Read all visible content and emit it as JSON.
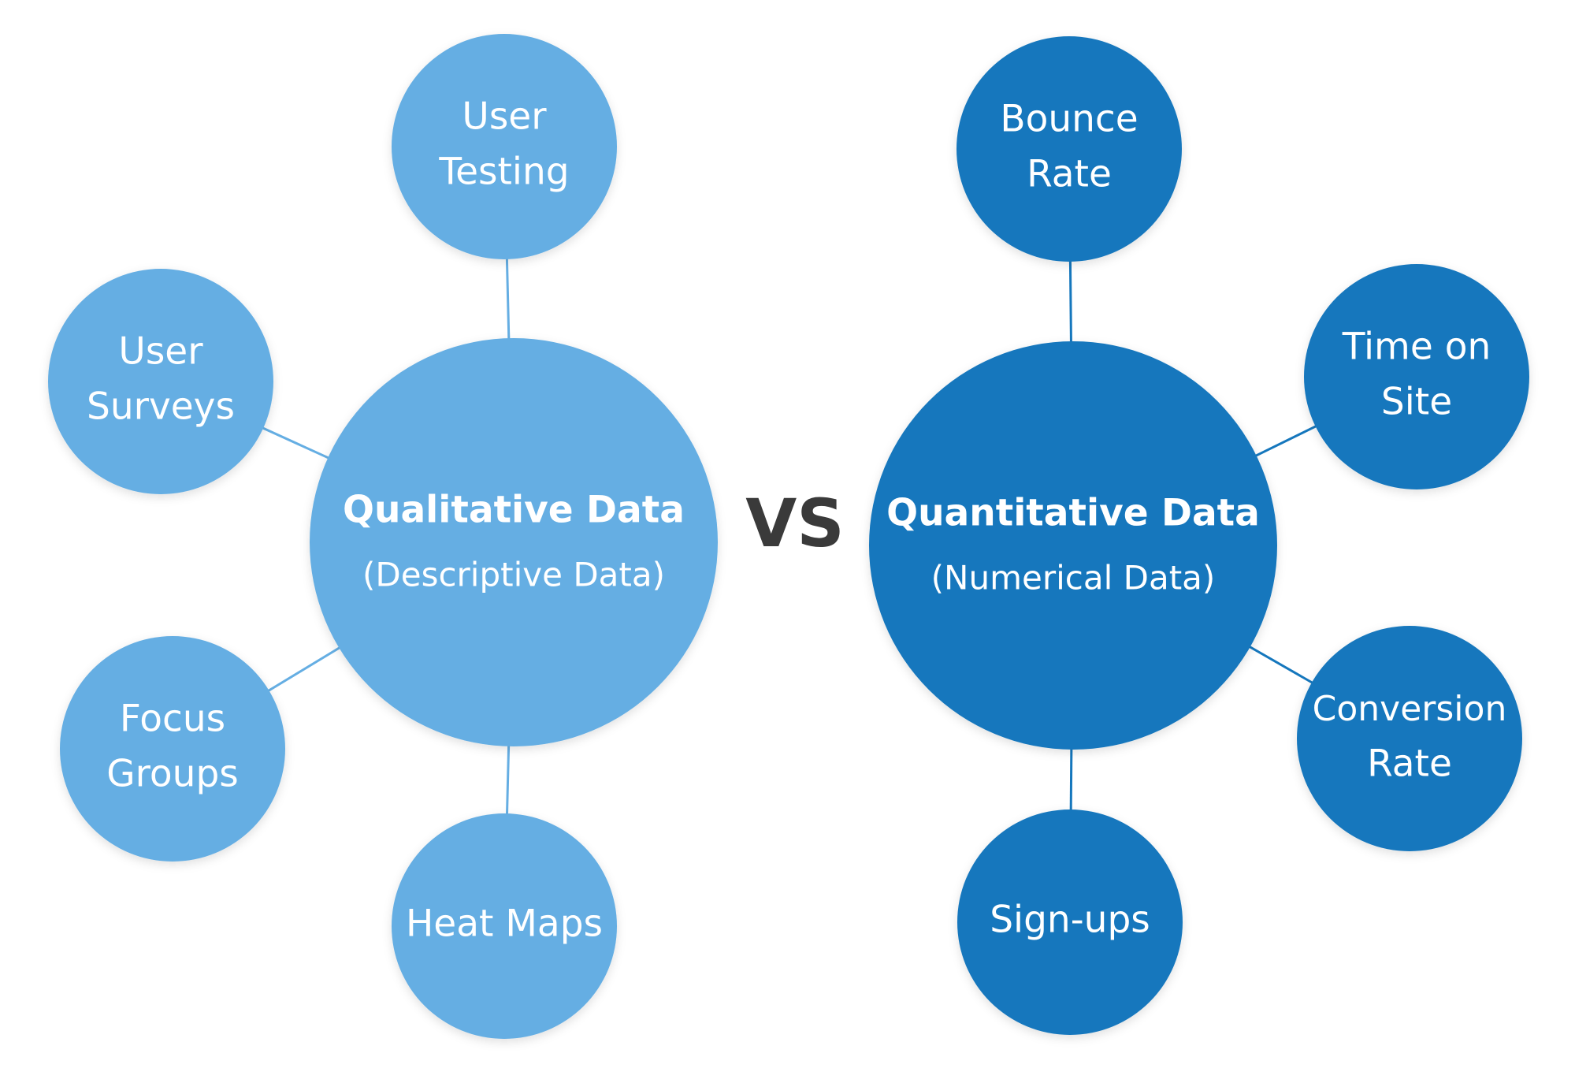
{
  "vs": "VS",
  "left": {
    "title": "Qualitative Data",
    "subtitle": "(Descriptive Data)",
    "nodes": [
      {
        "lines": [
          "User",
          "Testing"
        ]
      },
      {
        "lines": [
          "User",
          "Surveys"
        ]
      },
      {
        "lines": [
          "Focus",
          "Groups"
        ]
      },
      {
        "lines": [
          "Heat Maps"
        ]
      }
    ]
  },
  "right": {
    "title": "Quantitative Data",
    "subtitle": "(Numerical Data)",
    "nodes": [
      {
        "lines": [
          "Bounce",
          "Rate"
        ]
      },
      {
        "lines": [
          "Time on",
          "Site"
        ]
      },
      {
        "lines": [
          "Conversion",
          "Rate"
        ]
      },
      {
        "lines": [
          "Sign-ups"
        ]
      }
    ]
  }
}
